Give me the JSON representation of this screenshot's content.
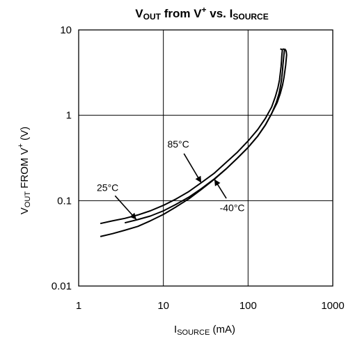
{
  "chart_data": {
    "type": "line",
    "title": {
      "parts": [
        {
          "text": "V",
          "sub": false
        },
        {
          "text": "OUT",
          "sub": true
        },
        {
          "text": " from V",
          "sub": false
        },
        {
          "text": "+",
          "sup": true
        },
        {
          "text": " vs. I",
          "sub": false
        },
        {
          "text": "SOURCE",
          "sub": true
        }
      ]
    },
    "xlabel": {
      "parts": [
        {
          "text": "I",
          "sub": false
        },
        {
          "text": "SOURCE",
          "sub": true
        },
        {
          "text": " (mA)",
          "sub": false
        }
      ]
    },
    "ylabel": {
      "parts": [
        {
          "text": "V",
          "sub": false
        },
        {
          "text": "OUT",
          "sub": true
        },
        {
          "text": " FROM V",
          "sub": false
        },
        {
          "text": "+",
          "sup": true
        },
        {
          "text": " (V)",
          "sub": false
        }
      ]
    },
    "xscale": "log",
    "yscale": "log",
    "xlim": [
      1,
      1000
    ],
    "ylim": [
      0.01,
      10
    ],
    "grid": true,
    "x_ticks": [
      {
        "value": 1,
        "label": "1"
      },
      {
        "value": 10,
        "label": "10"
      },
      {
        "value": 100,
        "label": "100"
      },
      {
        "value": 1000,
        "label": "1000"
      }
    ],
    "y_ticks": [
      {
        "value": 0.01,
        "label": "0.01"
      },
      {
        "value": 0.1,
        "label": "0.1"
      },
      {
        "value": 1,
        "label": "1"
      },
      {
        "value": 10,
        "label": "10"
      }
    ],
    "series": [
      {
        "name": "85°C",
        "x": [
          1.8,
          2.5,
          3.5,
          5,
          7,
          10,
          14,
          20,
          28,
          40,
          55,
          75,
          100,
          130,
          160,
          190,
          210,
          225,
          235,
          240,
          245,
          248,
          250,
          252,
          254,
          252,
          250,
          245,
          240
        ],
        "y": [
          0.054,
          0.058,
          0.062,
          0.068,
          0.076,
          0.088,
          0.104,
          0.128,
          0.162,
          0.21,
          0.28,
          0.37,
          0.5,
          0.68,
          0.92,
          1.25,
          1.65,
          2.1,
          2.6,
          3.1,
          3.7,
          4.3,
          4.9,
          5.4,
          5.8,
          5.85,
          5.9,
          5.95,
          6.0
        ]
      },
      {
        "name": "25°C",
        "x": [
          3.5,
          5,
          7,
          10,
          14,
          20,
          28,
          40,
          55,
          75,
          100,
          130,
          160,
          190,
          215,
          232,
          243,
          250,
          255,
          258,
          262,
          265,
          268,
          270,
          268,
          262,
          255
        ],
        "y": [
          0.055,
          0.06,
          0.066,
          0.076,
          0.09,
          0.11,
          0.138,
          0.18,
          0.235,
          0.315,
          0.42,
          0.57,
          0.77,
          1.05,
          1.4,
          1.8,
          2.25,
          2.75,
          3.3,
          3.9,
          4.5,
          5.1,
          5.6,
          5.8,
          5.9,
          5.95,
          6.0
        ]
      },
      {
        "name": "-40°C",
        "x": [
          1.8,
          2.5,
          3.5,
          5,
          7,
          10,
          14,
          20,
          28,
          40,
          55,
          75,
          100,
          130,
          160,
          190,
          220,
          240,
          255,
          265,
          272,
          278,
          282,
          285,
          282,
          278,
          272,
          268
        ],
        "y": [
          0.038,
          0.041,
          0.045,
          0.05,
          0.058,
          0.069,
          0.084,
          0.105,
          0.135,
          0.178,
          0.235,
          0.315,
          0.42,
          0.57,
          0.77,
          1.05,
          1.4,
          1.8,
          2.25,
          2.75,
          3.3,
          3.9,
          4.5,
          5.1,
          5.6,
          5.8,
          5.95,
          6.0
        ]
      }
    ],
    "annotations": [
      {
        "text": "85°C",
        "series": "85°C",
        "arrow_to": [
          28,
          0.162
        ],
        "label_at": [
          15,
          0.42
        ]
      },
      {
        "text": "25°C",
        "series": "25°C",
        "arrow_to": [
          4.8,
          0.06
        ],
        "label_at": [
          2.2,
          0.13
        ]
      },
      {
        "text": "-40°C",
        "series": "-40°C",
        "arrow_to": [
          40,
          0.178
        ],
        "label_at": [
          65,
          0.075
        ]
      }
    ]
  }
}
